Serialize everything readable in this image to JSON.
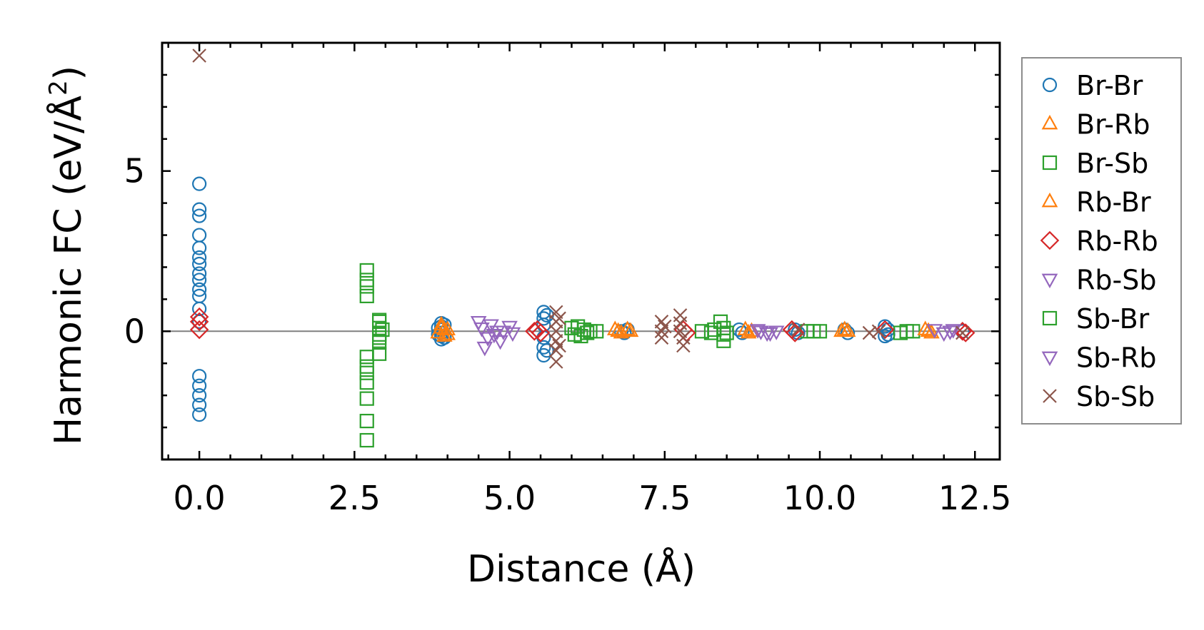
{
  "chart_data": {
    "type": "scatter",
    "title": "",
    "xlabel": "Distance (Å)",
    "ylabel_main": "Harmonic FC (eV/Å",
    "ylabel_sup": "2",
    "ylabel_close": ")",
    "xlim": [
      -0.6,
      12.9
    ],
    "ylim": [
      -4.0,
      9.0
    ],
    "xticks": [
      0.0,
      2.5,
      5.0,
      7.5,
      10.0,
      12.5
    ],
    "xtick_labels": [
      "0.0",
      "2.5",
      "5.0",
      "7.5",
      "10.0",
      "12.5"
    ],
    "yticks": [
      0,
      5
    ],
    "ytick_labels": [
      "0",
      "5"
    ],
    "zero_line": true,
    "legend_position": "outside-right",
    "series": [
      {
        "name": "Br-Br",
        "marker": "circle",
        "color": "#1f77b4",
        "points": [
          [
            0.0,
            4.6
          ],
          [
            0.0,
            3.8
          ],
          [
            0.0,
            3.6
          ],
          [
            0.0,
            3.0
          ],
          [
            0.0,
            2.6
          ],
          [
            0.0,
            2.3
          ],
          [
            0.0,
            2.1
          ],
          [
            0.0,
            1.8
          ],
          [
            0.0,
            1.6
          ],
          [
            0.0,
            1.3
          ],
          [
            0.0,
            1.1
          ],
          [
            0.0,
            0.7
          ],
          [
            0.0,
            0.3
          ],
          [
            0.0,
            -1.4
          ],
          [
            0.0,
            -1.7
          ],
          [
            0.0,
            -2.0
          ],
          [
            0.0,
            -2.3
          ],
          [
            0.0,
            -2.6
          ],
          [
            3.9,
            0.25
          ],
          [
            3.9,
            0.15
          ],
          [
            3.9,
            0.05
          ],
          [
            3.9,
            -0.05
          ],
          [
            3.9,
            -0.15
          ],
          [
            3.9,
            -0.25
          ],
          [
            3.95,
            0.2
          ],
          [
            3.95,
            -0.2
          ],
          [
            3.85,
            0.1
          ],
          [
            3.85,
            -0.1
          ],
          [
            5.55,
            0.6
          ],
          [
            5.55,
            0.4
          ],
          [
            5.55,
            0.2
          ],
          [
            5.55,
            -0.2
          ],
          [
            5.55,
            -0.5
          ],
          [
            5.55,
            -0.75
          ],
          [
            5.6,
            0.5
          ],
          [
            5.6,
            -0.6
          ],
          [
            6.8,
            0.0
          ],
          [
            6.85,
            -0.05
          ],
          [
            6.9,
            0.05
          ],
          [
            8.7,
            0.05
          ],
          [
            8.75,
            -0.05
          ],
          [
            9.6,
            0.05
          ],
          [
            9.65,
            -0.05
          ],
          [
            10.4,
            0.05
          ],
          [
            10.45,
            -0.05
          ],
          [
            11.05,
            0.15
          ],
          [
            11.05,
            -0.15
          ],
          [
            11.1,
            0.05
          ],
          [
            11.1,
            -0.1
          ],
          [
            12.3,
            0.0
          ]
        ]
      },
      {
        "name": "Br-Rb",
        "marker": "triangle-up",
        "color": "#ff7f0e",
        "points": [
          [
            3.9,
            0.2
          ],
          [
            3.95,
            0.05
          ],
          [
            4.0,
            -0.1
          ],
          [
            3.85,
            -0.05
          ],
          [
            6.7,
            0.05
          ],
          [
            6.8,
            -0.05
          ],
          [
            6.95,
            0.0
          ],
          [
            8.8,
            0.05
          ],
          [
            8.85,
            -0.05
          ],
          [
            10.35,
            0.0
          ],
          [
            10.4,
            0.05
          ],
          [
            11.75,
            0.0
          ],
          [
            11.8,
            -0.05
          ]
        ]
      },
      {
        "name": "Br-Sb",
        "marker": "square",
        "color": "#2ca02c",
        "points": [
          [
            2.7,
            1.9
          ],
          [
            2.7,
            1.6
          ],
          [
            2.7,
            1.4
          ],
          [
            2.7,
            1.1
          ],
          [
            2.7,
            -0.8
          ],
          [
            2.7,
            -1.1
          ],
          [
            2.7,
            -1.3
          ],
          [
            2.7,
            -1.6
          ],
          [
            2.7,
            -2.1
          ],
          [
            2.7,
            -2.8
          ],
          [
            2.7,
            -3.4
          ],
          [
            2.9,
            0.35
          ],
          [
            2.9,
            0.1
          ],
          [
            2.9,
            -0.1
          ],
          [
            2.9,
            -0.35
          ],
          [
            2.9,
            -0.7
          ],
          [
            6.0,
            0.1
          ],
          [
            6.05,
            -0.1
          ],
          [
            6.2,
            0.05
          ],
          [
            6.25,
            -0.05
          ],
          [
            6.4,
            0.0
          ],
          [
            8.1,
            0.0
          ],
          [
            8.25,
            -0.05
          ],
          [
            8.4,
            0.3
          ],
          [
            8.45,
            0.1
          ],
          [
            8.45,
            -0.1
          ],
          [
            8.45,
            -0.3
          ],
          [
            9.8,
            0.0
          ],
          [
            10.0,
            0.0
          ],
          [
            11.3,
            -0.05
          ],
          [
            11.5,
            0.0
          ]
        ]
      },
      {
        "name": "Rb-Br",
        "marker": "triangle-up",
        "color": "#ff7f0e",
        "points": [
          [
            3.9,
            0.1
          ],
          [
            3.95,
            -0.15
          ],
          [
            4.0,
            0.05
          ],
          [
            6.75,
            0.0
          ],
          [
            6.9,
            0.05
          ],
          [
            8.9,
            0.0
          ],
          [
            10.45,
            0.0
          ],
          [
            11.7,
            0.05
          ]
        ]
      },
      {
        "name": "Rb-Rb",
        "marker": "diamond",
        "color": "#d62728",
        "points": [
          [
            0.0,
            0.45
          ],
          [
            0.0,
            0.3
          ],
          [
            0.0,
            0.05
          ],
          [
            5.45,
            0.05
          ],
          [
            5.5,
            -0.05
          ],
          [
            5.4,
            0.0
          ],
          [
            7.8,
            0.05
          ],
          [
            7.85,
            -0.05
          ],
          [
            9.55,
            0.05
          ],
          [
            9.6,
            -0.05
          ],
          [
            11.05,
            0.05
          ],
          [
            12.3,
            0.0
          ],
          [
            12.35,
            -0.05
          ]
        ]
      },
      {
        "name": "Rb-Sb",
        "marker": "triangle-down",
        "color": "#9467bd",
        "points": [
          [
            4.5,
            0.3
          ],
          [
            4.6,
            -0.5
          ],
          [
            4.7,
            0.2
          ],
          [
            4.75,
            -0.1
          ],
          [
            4.8,
            0.0
          ],
          [
            4.85,
            -0.3
          ],
          [
            5.0,
            0.15
          ],
          [
            9.0,
            0.05
          ],
          [
            9.15,
            -0.05
          ],
          [
            9.3,
            0.0
          ],
          [
            11.85,
            0.05
          ],
          [
            12.0,
            -0.05
          ]
        ]
      },
      {
        "name": "Sb-Br",
        "marker": "square",
        "color": "#2ca02c",
        "points": [
          [
            2.9,
            0.3
          ],
          [
            2.9,
            -0.2
          ],
          [
            2.95,
            0.05
          ],
          [
            6.1,
            0.15
          ],
          [
            6.15,
            -0.15
          ],
          [
            6.3,
            0.0
          ],
          [
            8.3,
            0.05
          ],
          [
            8.5,
            -0.05
          ],
          [
            9.9,
            0.0
          ],
          [
            11.4,
            0.0
          ]
        ]
      },
      {
        "name": "Sb-Rb",
        "marker": "triangle-down",
        "color": "#9467bd",
        "points": [
          [
            4.55,
            0.1
          ],
          [
            4.65,
            -0.2
          ],
          [
            4.9,
            0.0
          ],
          [
            5.05,
            -0.05
          ],
          [
            9.05,
            0.0
          ],
          [
            9.2,
            -0.05
          ],
          [
            12.1,
            0.0
          ],
          [
            12.15,
            0.05
          ]
        ]
      },
      {
        "name": "Sb-Sb",
        "marker": "x",
        "color": "#8c564b",
        "points": [
          [
            0.0,
            8.6
          ],
          [
            5.75,
            0.6
          ],
          [
            5.75,
            0.3
          ],
          [
            5.75,
            0.0
          ],
          [
            5.75,
            -0.3
          ],
          [
            5.75,
            -0.6
          ],
          [
            5.75,
            -0.95
          ],
          [
            5.8,
            0.4
          ],
          [
            5.8,
            -0.45
          ],
          [
            7.45,
            0.3
          ],
          [
            7.45,
            0.0
          ],
          [
            7.45,
            -0.2
          ],
          [
            7.5,
            0.15
          ],
          [
            7.75,
            0.5
          ],
          [
            7.75,
            0.25
          ],
          [
            7.75,
            0.0
          ],
          [
            7.8,
            -0.2
          ],
          [
            7.8,
            -0.45
          ],
          [
            9.65,
            0.05
          ],
          [
            10.8,
            -0.05
          ],
          [
            10.95,
            0.0
          ],
          [
            12.3,
            -0.05
          ]
        ]
      }
    ]
  }
}
